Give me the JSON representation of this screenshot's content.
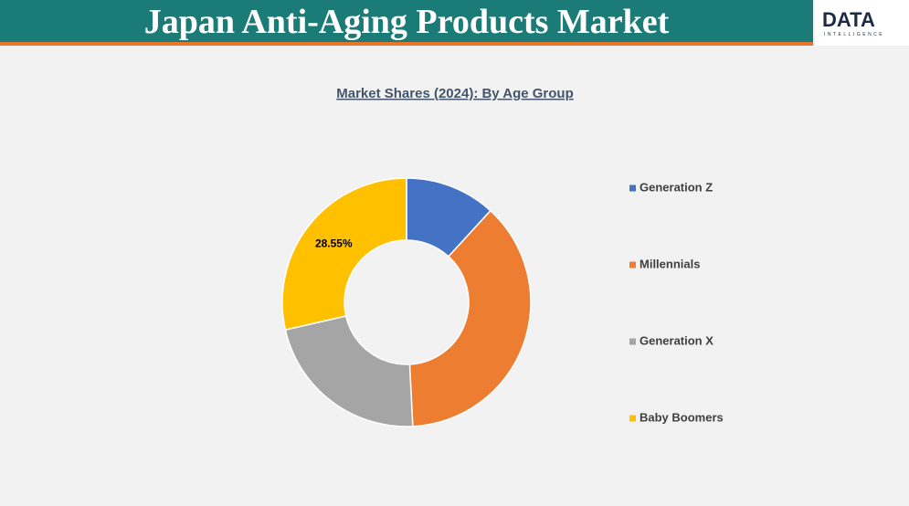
{
  "header": {
    "title": "Japan Anti-Aging Products Market",
    "logo": {
      "main": "DATA",
      "sub": "INTELLIGENCE"
    }
  },
  "chart_data": {
    "type": "donut",
    "title": "Market Shares (2024): By Age Group",
    "categories": [
      "Generation Z",
      "Millennials",
      "Generation X",
      "Baby Boomers"
    ],
    "values": [
      11.8,
      37.4,
      22.25,
      28.55
    ],
    "value_labels": [
      null,
      null,
      null,
      "28.55%"
    ],
    "colors": [
      "#4472c4",
      "#ed7d31",
      "#a5a5a5",
      "#ffc000"
    ],
    "legend": "right"
  }
}
